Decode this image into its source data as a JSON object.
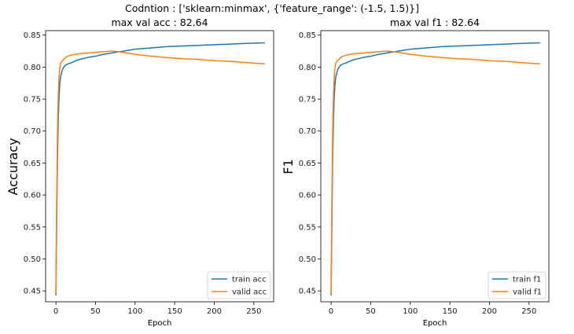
{
  "figure": {
    "suptitle": "Codntion : ['sklearn:minmax', {'feature_range': (-1.5, 1.5)}]"
  },
  "colors": {
    "train": "#1f77b4",
    "valid": "#ff7f0e"
  },
  "chart_data": [
    {
      "type": "line",
      "title": "max val acc : 82.64",
      "xlabel": "Epoch",
      "ylabel": "Accuracy",
      "xlim": [
        -13,
        275
      ],
      "ylim": [
        0.433,
        0.857
      ],
      "xticks": [
        0,
        50,
        100,
        150,
        200,
        250
      ],
      "yticks": [
        0.45,
        0.5,
        0.55,
        0.6,
        0.65,
        0.7,
        0.75,
        0.8,
        0.85
      ],
      "legend": "lower-right",
      "series": [
        {
          "name": "train acc",
          "x": [
            0,
            1,
            2,
            3,
            4,
            5,
            6,
            8,
            10,
            12,
            15,
            20,
            25,
            30,
            40,
            50,
            60,
            70,
            80,
            90,
            100,
            120,
            140,
            160,
            180,
            200,
            220,
            240,
            264
          ],
          "y": [
            0.443,
            0.56,
            0.66,
            0.72,
            0.755,
            0.775,
            0.785,
            0.795,
            0.8,
            0.803,
            0.805,
            0.807,
            0.81,
            0.812,
            0.815,
            0.817,
            0.82,
            0.822,
            0.824,
            0.826,
            0.828,
            0.83,
            0.832,
            0.833,
            0.834,
            0.835,
            0.836,
            0.837,
            0.838
          ]
        },
        {
          "name": "valid acc",
          "x": [
            0,
            1,
            2,
            3,
            4,
            5,
            6,
            8,
            10,
            12,
            15,
            20,
            25,
            30,
            40,
            50,
            60,
            70,
            80,
            90,
            100,
            120,
            140,
            160,
            180,
            200,
            220,
            240,
            264
          ],
          "y": [
            0.445,
            0.59,
            0.7,
            0.755,
            0.785,
            0.8,
            0.806,
            0.81,
            0.812,
            0.815,
            0.817,
            0.819,
            0.82,
            0.821,
            0.822,
            0.823,
            0.824,
            0.825,
            0.824,
            0.822,
            0.82,
            0.817,
            0.815,
            0.813,
            0.812,
            0.81,
            0.809,
            0.807,
            0.805
          ]
        }
      ]
    },
    {
      "type": "line",
      "title": "max val f1 : 82.64",
      "xlabel": "Epoch",
      "ylabel": "F1",
      "xlim": [
        -13,
        275
      ],
      "ylim": [
        0.433,
        0.857
      ],
      "xticks": [
        0,
        50,
        100,
        150,
        200,
        250
      ],
      "yticks": [
        0.45,
        0.5,
        0.55,
        0.6,
        0.65,
        0.7,
        0.75,
        0.8,
        0.85
      ],
      "legend": "lower-right",
      "series": [
        {
          "name": "train f1",
          "x": [
            0,
            1,
            2,
            3,
            4,
            5,
            6,
            8,
            10,
            12,
            15,
            20,
            25,
            30,
            40,
            50,
            60,
            70,
            80,
            90,
            100,
            120,
            140,
            160,
            180,
            200,
            220,
            240,
            264
          ],
          "y": [
            0.443,
            0.56,
            0.66,
            0.72,
            0.755,
            0.775,
            0.785,
            0.795,
            0.8,
            0.803,
            0.805,
            0.807,
            0.81,
            0.812,
            0.815,
            0.817,
            0.82,
            0.822,
            0.824,
            0.826,
            0.828,
            0.83,
            0.832,
            0.833,
            0.834,
            0.835,
            0.836,
            0.837,
            0.838
          ]
        },
        {
          "name": "valid f1",
          "x": [
            0,
            1,
            2,
            3,
            4,
            5,
            6,
            8,
            10,
            12,
            15,
            20,
            25,
            30,
            40,
            50,
            60,
            70,
            80,
            90,
            100,
            120,
            140,
            160,
            180,
            200,
            220,
            240,
            264
          ],
          "y": [
            0.445,
            0.59,
            0.7,
            0.755,
            0.785,
            0.8,
            0.806,
            0.81,
            0.812,
            0.815,
            0.817,
            0.819,
            0.82,
            0.821,
            0.822,
            0.823,
            0.824,
            0.825,
            0.824,
            0.822,
            0.82,
            0.817,
            0.815,
            0.813,
            0.812,
            0.81,
            0.809,
            0.807,
            0.805
          ]
        }
      ]
    }
  ]
}
